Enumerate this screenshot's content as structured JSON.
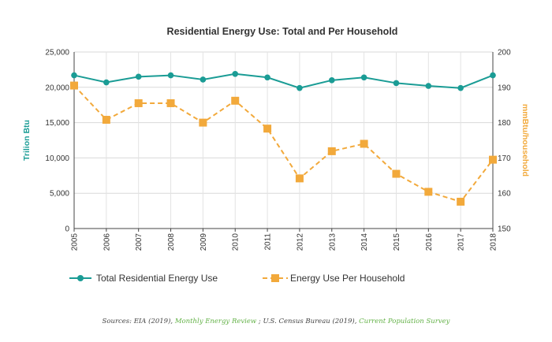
{
  "chart_data": {
    "type": "line",
    "title": "Residential Energy Use: Total and Per Household",
    "categories": [
      "2005",
      "2006",
      "2007",
      "2008",
      "2009",
      "2010",
      "2011",
      "2012",
      "2013",
      "2014",
      "2015",
      "2016",
      "2017",
      "2018"
    ],
    "y_left": {
      "label": "Trilion Btu",
      "ylim": [
        0,
        25000
      ],
      "ticks": [
        "0",
        "5,000",
        "10,000",
        "15,000",
        "20,000",
        "25,000"
      ],
      "tick_values": [
        0,
        5000,
        10000,
        15000,
        20000,
        25000
      ]
    },
    "y_right": {
      "label": "mmBtu/household",
      "ylim": [
        150,
        200
      ],
      "ticks": [
        "150",
        "160",
        "170",
        "180",
        "190",
        "200"
      ],
      "tick_values": [
        150,
        160,
        170,
        180,
        190,
        200
      ]
    },
    "grid": true,
    "legend_position": "bottom",
    "series": [
      {
        "name": "Total Residential Energy Use",
        "axis": "left",
        "color": "#1a9c95",
        "style": "solid",
        "marker": "circle",
        "values": [
          21700,
          20700,
          21500,
          21700,
          21100,
          21900,
          21400,
          19900,
          21000,
          21400,
          20600,
          20200,
          19900,
          21700
        ]
      },
      {
        "name": "Energy Use Per Household",
        "axis": "right",
        "color": "#f2a93b",
        "style": "dashed",
        "marker": "square",
        "values": [
          190.5,
          180.8,
          185.5,
          185.5,
          180.0,
          186.2,
          178.3,
          164.2,
          171.9,
          174.0,
          165.5,
          160.4,
          157.6,
          169.5
        ]
      }
    ],
    "source": {
      "prefix": "Sources: EIA (2019), ",
      "link1": "Monthly Energy Review",
      "middle": " ; U.S. Census Bureau (2019), ",
      "link2": "Current Population Survey"
    }
  }
}
